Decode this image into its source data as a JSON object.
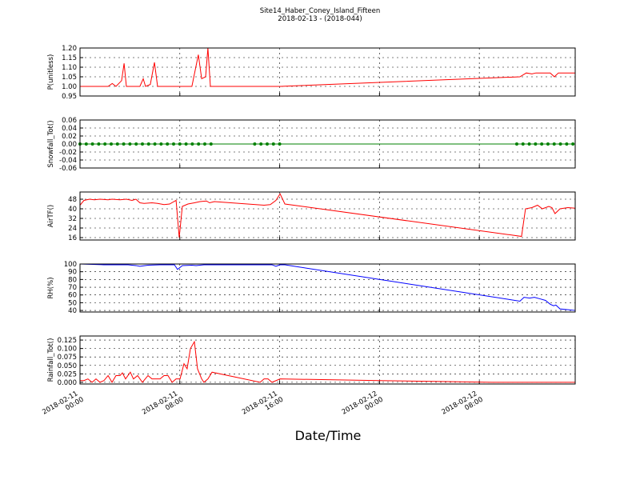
{
  "figure": {
    "title": "Site14_Haber_Coney_Island_Fifteen",
    "subtitle": "2018-02-13 - (2018-044)",
    "x_label": "Date/Time",
    "xlim": [
      "2018-02-11 00:00",
      "2018-02-12 15:41"
    ],
    "xticks": [
      "2018-02-11 00:00",
      "2018-02-11 08:00",
      "2018-02-11 16:00",
      "2018-02-12 00:00",
      "2018-02-12 08:00"
    ],
    "grid": true
  },
  "chart_data": [
    {
      "type": "line",
      "y_label": "P(unitless)",
      "ylim": [
        0.95,
        1.2
      ],
      "yticks": [
        0.95,
        {
          "value": 1,
          "label": "1.00"
        },
        1.05,
        {
          "value": 1.1,
          "label": "1.10"
        },
        1.15,
        {
          "value": 1.2,
          "label": "1.20"
        }
      ],
      "series": [
        {
          "color": "#ff0000",
          "marker": false,
          "x": [
            "2018-02-11 00:00",
            "2018-02-11 02:15",
            "2018-02-11 02:35",
            "2018-02-11 02:53",
            "2018-02-11 03:20",
            "2018-02-11 03:32",
            "2018-02-11 03:43",
            "2018-02-11 04:48",
            "2018-02-11 05:04",
            "2018-02-11 05:15",
            "2018-02-11 05:38",
            "2018-02-11 05:58",
            "2018-02-11 06:13",
            "2018-02-11 08:58",
            "2018-02-11 09:29",
            "2018-02-11 09:45",
            "2018-02-11 10:04",
            "2018-02-11 10:15",
            "2018-02-11 10:27",
            "2018-02-11 16:02",
            "2018-02-12 11:15",
            "2018-02-12 11:46",
            "2018-02-12 12:13",
            "2018-02-12 12:32",
            "2018-02-12 13:41",
            "2018-02-12 14:01",
            "2018-02-12 14:20",
            "2018-02-12 15:41"
          ],
          "values": [
            1,
            1,
            1.015,
            1,
            1.03,
            1.12,
            1,
            1,
            1.04,
            1,
            1.01,
            1.125,
            1,
            1,
            1.165,
            1.04,
            1.05,
            1.2,
            1,
            1,
            1.05,
            1.07,
            1.065,
            1.07,
            1.07,
            1.05,
            1.07,
            1.07
          ]
        }
      ]
    },
    {
      "type": "line",
      "y_label": "Snowfall_Tot()",
      "ylim": [
        -0.06,
        0.06
      ],
      "yticks": [
        -0.06,
        -0.04,
        -0.02,
        {
          "value": 0,
          "label": "0.00"
        },
        0.02,
        0.04,
        0.06
      ],
      "series": [
        {
          "color": "#008000",
          "marker": true,
          "x": [
            "2018-02-11 00:00",
            "2018-02-11 00:30",
            "2018-02-11 01:00",
            "2018-02-11 01:30",
            "2018-02-11 02:00",
            "2018-02-11 02:30",
            "2018-02-11 03:00",
            "2018-02-11 03:30",
            "2018-02-11 04:00",
            "2018-02-11 04:30",
            "2018-02-11 05:00",
            "2018-02-11 05:30",
            "2018-02-11 06:00",
            "2018-02-11 06:30",
            "2018-02-11 07:00",
            "2018-02-11 07:30",
            "2018-02-11 08:00",
            "2018-02-11 08:30",
            "2018-02-11 09:00",
            "2018-02-11 09:30",
            "2018-02-11 10:00",
            "2018-02-11 10:30",
            "2018-02-11 14:00",
            "2018-02-11 14:30",
            "2018-02-11 15:00",
            "2018-02-11 15:30",
            "2018-02-11 16:00",
            "2018-02-12 11:00",
            "2018-02-12 11:30",
            "2018-02-12 12:00",
            "2018-02-12 12:30",
            "2018-02-12 13:00",
            "2018-02-12 13:30",
            "2018-02-12 14:00",
            "2018-02-12 14:30",
            "2018-02-12 15:00",
            "2018-02-12 15:30"
          ],
          "values": [
            0,
            0,
            0,
            0,
            0,
            0,
            0,
            0,
            0,
            0,
            0,
            0,
            0,
            0,
            0,
            0,
            0,
            0,
            0,
            0,
            0,
            0,
            0,
            0,
            0,
            0,
            0,
            0,
            0,
            0,
            0,
            0,
            0,
            0,
            0,
            0,
            0
          ]
        }
      ]
    },
    {
      "type": "line",
      "y_label": "AirTF()",
      "ylim": [
        14,
        54
      ],
      "yticks": [
        16,
        24,
        32,
        40,
        48
      ],
      "series": [
        {
          "color": "#ff0000",
          "marker": false,
          "x": [
            "2018-02-11 00:00",
            "2018-02-11 00:19",
            "2018-02-11 00:46",
            "2018-02-11 01:09",
            "2018-02-11 01:36",
            "2018-02-11 02:15",
            "2018-02-11 02:34",
            "2018-02-11 03:12",
            "2018-02-11 03:43",
            "2018-02-11 04:10",
            "2018-02-11 04:29",
            "2018-02-11 04:48",
            "2018-02-11 05:08",
            "2018-02-11 05:46",
            "2018-02-11 06:13",
            "2018-02-11 06:44",
            "2018-02-11 07:11",
            "2018-02-11 07:42",
            "2018-02-11 07:57",
            "2018-02-11 08:12",
            "2018-02-11 08:39",
            "2018-02-11 09:10",
            "2018-02-11 09:37",
            "2018-02-11 10:08",
            "2018-02-11 10:23",
            "2018-02-11 10:46",
            "2018-02-11 14:45",
            "2018-02-11 15:15",
            "2018-02-11 15:42",
            "2018-02-11 16:02",
            "2018-02-11 16:25",
            "2018-02-12 11:23",
            "2018-02-12 11:42",
            "2018-02-12 12:13",
            "2018-02-12 12:40",
            "2018-02-12 13:03",
            "2018-02-12 13:34",
            "2018-02-12 13:49",
            "2018-02-12 14:04",
            "2018-02-12 14:28",
            "2018-02-12 15:06",
            "2018-02-12 15:41"
          ],
          "values": [
            43,
            47,
            48,
            47.5,
            48,
            47.5,
            48,
            47.5,
            48,
            47,
            48,
            45,
            44.5,
            45,
            44.5,
            43.5,
            44,
            47,
            16,
            42,
            44,
            45,
            46,
            46.5,
            45,
            46,
            43,
            43.5,
            47,
            52.5,
            44,
            17,
            40,
            41,
            43,
            40,
            42,
            41,
            36,
            40,
            41,
            40.5
          ]
        }
      ]
    },
    {
      "type": "line",
      "y_label": "RH(%)",
      "ylim": [
        38,
        100
      ],
      "yticks": [
        40,
        50,
        60,
        70,
        80,
        90,
        100
      ],
      "series": [
        {
          "color": "#0000ff",
          "marker": false,
          "x": [
            "2018-02-11 00:00",
            "2018-02-11 01:55",
            "2018-02-11 03:51",
            "2018-02-11 04:29",
            "2018-02-11 04:48",
            "2018-02-11 05:27",
            "2018-02-11 06:25",
            "2018-02-11 07:34",
            "2018-02-11 07:49",
            "2018-02-11 08:12",
            "2018-02-11 08:58",
            "2018-02-11 09:18",
            "2018-02-11 09:56",
            "2018-02-11 12:41",
            "2018-02-11 15:23",
            "2018-02-11 15:42",
            "2018-02-11 16:02",
            "2018-02-11 16:25",
            "2018-02-12 11:15",
            "2018-02-12 11:35",
            "2018-02-12 12:02",
            "2018-02-12 12:25",
            "2018-02-12 12:52",
            "2018-02-12 13:18",
            "2018-02-12 13:41",
            "2018-02-12 13:57",
            "2018-02-12 14:08",
            "2018-02-12 14:28",
            "2018-02-12 15:06",
            "2018-02-12 15:41"
          ],
          "values": [
            100,
            99,
            99,
            98,
            97,
            98.5,
            99,
            99,
            93,
            98,
            98.5,
            98,
            99,
            99,
            99,
            97,
            99,
            99,
            52,
            57,
            56,
            57,
            55,
            53,
            48,
            46,
            47,
            42,
            41,
            40
          ]
        }
      ]
    },
    {
      "type": "line",
      "y_label": "Rainfall_Tot()",
      "ylim": [
        -0.005,
        0.137
      ],
      "yticks": [
        {
          "value": 0,
          "label": "0.000"
        },
        0.025,
        {
          "value": 0.05,
          "label": "0.050"
        },
        0.075,
        {
          "value": 0.1,
          "label": "0.100"
        },
        0.125
      ],
      "series": [
        {
          "color": "#ff0000",
          "marker": false,
          "x": [
            "2018-02-11 00:00",
            "2018-02-11 00:19",
            "2018-02-11 00:38",
            "2018-02-11 00:58",
            "2018-02-11 01:17",
            "2018-02-11 01:36",
            "2018-02-11 01:55",
            "2018-02-11 02:15",
            "2018-02-11 02:34",
            "2018-02-11 02:53",
            "2018-02-11 03:12",
            "2018-02-11 03:24",
            "2018-02-11 03:39",
            "2018-02-11 04:02",
            "2018-02-11 04:17",
            "2018-02-11 04:37",
            "2018-02-11 05:00",
            "2018-02-11 05:27",
            "2018-02-11 05:46",
            "2018-02-11 06:25",
            "2018-02-11 06:44",
            "2018-02-11 07:03",
            "2018-02-11 07:23",
            "2018-02-11 07:42",
            "2018-02-11 08:01",
            "2018-02-11 08:20",
            "2018-02-11 08:35",
            "2018-02-11 08:51",
            "2018-02-11 09:10",
            "2018-02-11 09:25",
            "2018-02-11 09:45",
            "2018-02-11 09:56",
            "2018-02-11 10:15",
            "2018-02-11 10:35",
            "2018-02-11 14:26",
            "2018-02-11 14:45",
            "2018-02-11 15:04",
            "2018-02-11 15:23",
            "2018-02-11 16:02",
            "2018-02-12 00:00",
            "2018-02-12 09:00",
            "2018-02-12 15:41"
          ],
          "values": [
            0.005,
            0.005,
            0.01,
            0,
            0.01,
            0,
            0.005,
            0.02,
            0,
            0.02,
            0.02,
            0.028,
            0.01,
            0.03,
            0.01,
            0.02,
            0,
            0.02,
            0.01,
            0.01,
            0.02,
            0.02,
            0,
            0.01,
            0.01,
            0.055,
            0.04,
            0.1,
            0.12,
            0.04,
            0.01,
            0,
            0.01,
            0.03,
            0,
            0.01,
            0.01,
            0,
            0.01,
            0.005,
            0,
            0
          ]
        }
      ]
    }
  ]
}
